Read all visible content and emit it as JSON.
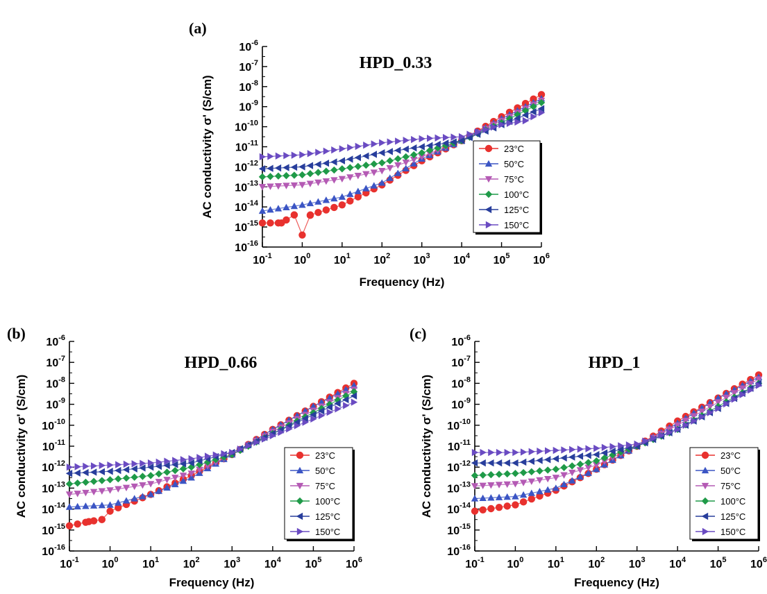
{
  "chart_data": [
    {
      "type": "scatter",
      "panel_label": "(a)",
      "title": "HPD_0.33",
      "xlabel": "Frequency (Hz)",
      "ylabel": "AC conductivity σ' (S/cm)",
      "x_scale": "log",
      "y_scale": "log",
      "xlim": [
        0.1,
        1000000
      ],
      "ylim": [
        1e-16,
        1e-06
      ],
      "x_ticks": [
        "10^-1",
        "10^0",
        "10^1",
        "10^2",
        "10^3",
        "10^4",
        "10^5",
        "10^6"
      ],
      "y_ticks": [
        "10^-16",
        "10^-15",
        "10^-14",
        "10^-13",
        "10^-12",
        "10^-11",
        "10^-10",
        "10^-9",
        "10^-8",
        "10^-7",
        "10^-6"
      ],
      "legend_position": "right",
      "series": [
        {
          "name": "23°C",
          "color": "#e8312e",
          "marker": "circle",
          "points": [
            [
              0.1,
              -14.8
            ],
            [
              0.3,
              -14.8
            ],
            [
              0.63,
              -14.4
            ],
            [
              1,
              -15.4
            ],
            [
              1.6,
              -14.4
            ],
            [
              10,
              -13.9
            ],
            [
              100,
              -12.9
            ],
            [
              1000,
              -11.7
            ],
            [
              10000,
              -10.7
            ],
            [
              100000,
              -9.5
            ],
            [
              1000000,
              -8.4
            ]
          ]
        },
        {
          "name": "50°C",
          "color": "#3b55c4",
          "marker": "triangle-up",
          "points": [
            [
              0.1,
              -14.2
            ],
            [
              1,
              -13.9
            ],
            [
              10,
              -13.5
            ],
            [
              100,
              -12.8
            ],
            [
              1000,
              -11.6
            ],
            [
              10000,
              -10.7
            ],
            [
              100000,
              -9.6
            ],
            [
              1000000,
              -8.6
            ]
          ]
        },
        {
          "name": "75°C",
          "color": "#b45ab4",
          "marker": "triangle-down",
          "points": [
            [
              0.1,
              -13.0
            ],
            [
              1,
              -12.9
            ],
            [
              10,
              -12.6
            ],
            [
              100,
              -12.2
            ],
            [
              1000,
              -11.5
            ],
            [
              10000,
              -10.7
            ],
            [
              100000,
              -9.7
            ],
            [
              1000000,
              -8.7
            ]
          ]
        },
        {
          "name": "100°C",
          "color": "#1f9a48",
          "marker": "diamond",
          "points": [
            [
              0.1,
              -12.5
            ],
            [
              1,
              -12.4
            ],
            [
              10,
              -12.1
            ],
            [
              100,
              -11.8
            ],
            [
              1000,
              -11.3
            ],
            [
              10000,
              -10.7
            ],
            [
              100000,
              -9.8
            ],
            [
              1000000,
              -8.8
            ]
          ]
        },
        {
          "name": "125°C",
          "color": "#283e9c",
          "marker": "triangle-left",
          "points": [
            [
              0.1,
              -12.1
            ],
            [
              1,
              -12.0
            ],
            [
              10,
              -11.7
            ],
            [
              100,
              -11.3
            ],
            [
              1000,
              -11.0
            ],
            [
              10000,
              -10.7
            ],
            [
              100000,
              -9.9
            ],
            [
              1000000,
              -9.1
            ]
          ]
        },
        {
          "name": "150°C",
          "color": "#6a4bc2",
          "marker": "triangle-right",
          "points": [
            [
              0.1,
              -11.5
            ],
            [
              1,
              -11.4
            ],
            [
              10,
              -11.1
            ],
            [
              100,
              -10.8
            ],
            [
              1000,
              -10.6
            ],
            [
              10000,
              -10.5
            ],
            [
              100000,
              -9.9
            ],
            [
              400000,
              -9.7
            ],
            [
              1000000,
              -9.3
            ]
          ]
        }
      ]
    },
    {
      "type": "scatter",
      "panel_label": "(b)",
      "title": "HPD_0.66",
      "xlabel": "Frequency (Hz)",
      "ylabel": "AC conductivity σ' (S/cm)",
      "x_scale": "log",
      "y_scale": "log",
      "xlim": [
        0.1,
        1000000
      ],
      "ylim": [
        1e-16,
        1e-06
      ],
      "x_ticks": [
        "10^-1",
        "10^0",
        "10^1",
        "10^2",
        "10^3",
        "10^4",
        "10^5",
        "10^6"
      ],
      "y_ticks": [
        "10^-16",
        "10^-15",
        "10^-14",
        "10^-13",
        "10^-12",
        "10^-11",
        "10^-10",
        "10^-9",
        "10^-8",
        "10^-7",
        "10^-6"
      ],
      "legend_position": "right",
      "series": [
        {
          "name": "23°C",
          "color": "#e8312e",
          "marker": "circle",
          "points": [
            [
              0.1,
              -14.8
            ],
            [
              0.3,
              -14.6
            ],
            [
              0.63,
              -14.5
            ],
            [
              1,
              -14.1
            ],
            [
              10,
              -13.3
            ],
            [
              100,
              -12.4
            ],
            [
              1000,
              -11.4
            ],
            [
              10000,
              -10.2
            ],
            [
              100000,
              -9.1
            ],
            [
              1000000,
              -8.0
            ]
          ]
        },
        {
          "name": "50°C",
          "color": "#3b55c4",
          "marker": "triangle-up",
          "points": [
            [
              0.1,
              -13.9
            ],
            [
              1,
              -13.8
            ],
            [
              10,
              -13.3
            ],
            [
              100,
              -12.5
            ],
            [
              1000,
              -11.4
            ],
            [
              10000,
              -10.2
            ],
            [
              100000,
              -9.1
            ],
            [
              1000000,
              -8.1
            ]
          ]
        },
        {
          "name": "75°C",
          "color": "#b45ab4",
          "marker": "triangle-down",
          "points": [
            [
              0.1,
              -13.3
            ],
            [
              1,
              -13.1
            ],
            [
              10,
              -12.8
            ],
            [
              100,
              -12.3
            ],
            [
              1000,
              -11.4
            ],
            [
              10000,
              -10.3
            ],
            [
              100000,
              -9.3
            ],
            [
              1000000,
              -8.3
            ]
          ]
        },
        {
          "name": "100°C",
          "color": "#1f9a48",
          "marker": "diamond",
          "points": [
            [
              0.1,
              -12.8
            ],
            [
              1,
              -12.6
            ],
            [
              10,
              -12.4
            ],
            [
              100,
              -12.0
            ],
            [
              1000,
              -11.4
            ],
            [
              10000,
              -10.4
            ],
            [
              100000,
              -9.4
            ],
            [
              1000000,
              -8.4
            ]
          ]
        },
        {
          "name": "125°C",
          "color": "#283e9c",
          "marker": "triangle-left",
          "points": [
            [
              0.1,
              -12.3
            ],
            [
              1,
              -12.2
            ],
            [
              10,
              -12.0
            ],
            [
              100,
              -11.8
            ],
            [
              1000,
              -11.3
            ],
            [
              10000,
              -10.4
            ],
            [
              100000,
              -9.5
            ],
            [
              1000000,
              -8.6
            ]
          ]
        },
        {
          "name": "150°C",
          "color": "#6a4bc2",
          "marker": "triangle-right",
          "points": [
            [
              0.1,
              -12.0
            ],
            [
              1,
              -11.9
            ],
            [
              10,
              -11.8
            ],
            [
              100,
              -11.6
            ],
            [
              1000,
              -11.3
            ],
            [
              10000,
              -10.5
            ],
            [
              100000,
              -9.7
            ],
            [
              1000000,
              -8.9
            ]
          ]
        }
      ]
    },
    {
      "type": "scatter",
      "panel_label": "(c)",
      "title": "HPD_1",
      "xlabel": "Frequency (Hz)",
      "ylabel": "AC conductivity σ' (S/cm)",
      "x_scale": "log",
      "y_scale": "log",
      "xlim": [
        0.1,
        1000000
      ],
      "ylim": [
        1e-16,
        1e-06
      ],
      "x_ticks": [
        "10^-1",
        "10^0",
        "10^1",
        "10^2",
        "10^3",
        "10^4",
        "10^5",
        "10^6"
      ],
      "y_ticks": [
        "10^-16",
        "10^-15",
        "10^-14",
        "10^-13",
        "10^-12",
        "10^-11",
        "10^-10",
        "10^-9",
        "10^-8",
        "10^-7",
        "10^-6"
      ],
      "legend_position": "right",
      "series": [
        {
          "name": "23°C",
          "color": "#e8312e",
          "marker": "circle",
          "points": [
            [
              0.1,
              -14.1
            ],
            [
              1,
              -13.8
            ],
            [
              10,
              -13.1
            ],
            [
              100,
              -12.1
            ],
            [
              1000,
              -11.0
            ],
            [
              10000,
              -9.8
            ],
            [
              100000,
              -8.7
            ],
            [
              1000000,
              -7.6
            ]
          ]
        },
        {
          "name": "50°C",
          "color": "#3b55c4",
          "marker": "triangle-up",
          "points": [
            [
              0.1,
              -13.5
            ],
            [
              1,
              -13.4
            ],
            [
              10,
              -13.0
            ],
            [
              100,
              -12.1
            ],
            [
              1000,
              -11.0
            ],
            [
              10000,
              -9.9
            ],
            [
              100000,
              -8.7
            ],
            [
              1000000,
              -7.7
            ]
          ]
        },
        {
          "name": "75°C",
          "color": "#b45ab4",
          "marker": "triangle-down",
          "points": [
            [
              0.1,
              -12.9
            ],
            [
              1,
              -12.8
            ],
            [
              10,
              -12.5
            ],
            [
              100,
              -11.9
            ],
            [
              1000,
              -11.0
            ],
            [
              10000,
              -10.0
            ],
            [
              100000,
              -8.9
            ],
            [
              1000000,
              -7.8
            ]
          ]
        },
        {
          "name": "100°C",
          "color": "#1f9a48",
          "marker": "diamond",
          "points": [
            [
              0.1,
              -12.4
            ],
            [
              1,
              -12.3
            ],
            [
              10,
              -12.1
            ],
            [
              100,
              -11.7
            ],
            [
              1000,
              -11.0
            ],
            [
              10000,
              -10.2
            ],
            [
              100000,
              -9.1
            ],
            [
              1000000,
              -8.0
            ]
          ]
        },
        {
          "name": "125°C",
          "color": "#283e9c",
          "marker": "triangle-left",
          "points": [
            [
              0.1,
              -11.8
            ],
            [
              1,
              -11.8
            ],
            [
              10,
              -11.6
            ],
            [
              100,
              -11.4
            ],
            [
              1000,
              -11.0
            ],
            [
              10000,
              -10.2
            ],
            [
              100000,
              -9.2
            ],
            [
              1000000,
              -8.0
            ]
          ]
        },
        {
          "name": "150°C",
          "color": "#6a4bc2",
          "marker": "triangle-right",
          "points": [
            [
              0.1,
              -11.3
            ],
            [
              1,
              -11.3
            ],
            [
              10,
              -11.2
            ],
            [
              100,
              -11.1
            ],
            [
              1000,
              -10.9
            ],
            [
              10000,
              -10.2
            ],
            [
              100000,
              -9.2
            ],
            [
              1000000,
              -8.1
            ]
          ]
        }
      ]
    }
  ]
}
